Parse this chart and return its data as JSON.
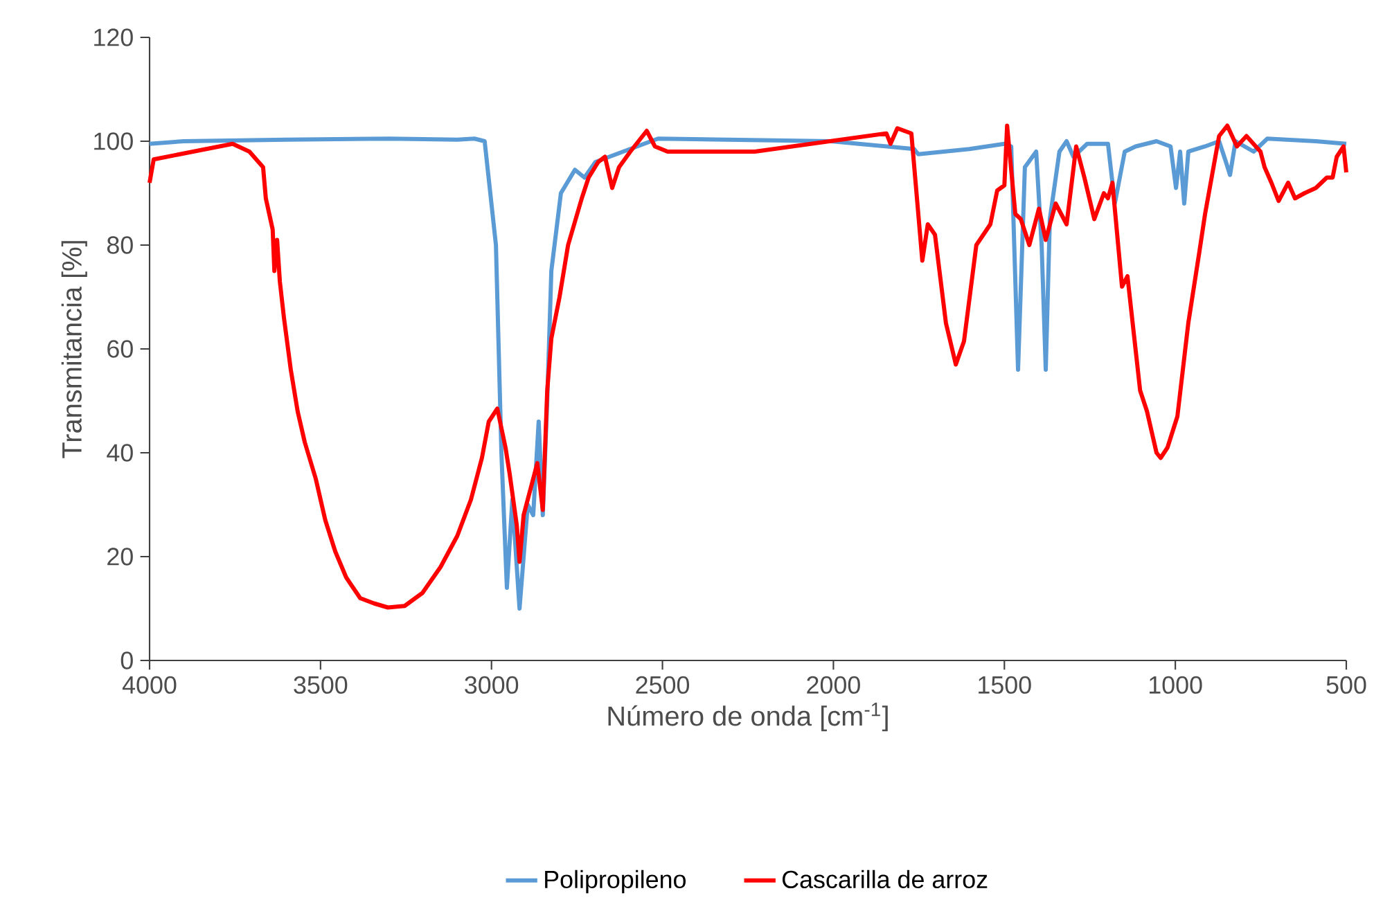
{
  "chart_data": {
    "type": "line",
    "xlabel": "Número de onda [cm$^{-1}$]",
    "ylabel": "Transmitancia [%]",
    "xlim": [
      4000,
      500
    ],
    "xticks": [
      4000,
      3500,
      3000,
      2500,
      2000,
      1500,
      1000,
      500
    ],
    "ylim": [
      0,
      120
    ],
    "yticks": [
      0,
      20,
      40,
      60,
      80,
      100,
      120
    ],
    "grid": false,
    "legend": "bottom",
    "marker": "none",
    "line_style": "solid",
    "series": [
      {
        "name": "Polipropileno",
        "color": "#5b9bd5",
        "x": [
          4000,
          3900,
          3600,
          3300,
          3100,
          3050,
          3020,
          2987,
          2971,
          2955,
          2939,
          2918,
          2894,
          2878,
          2862,
          2850,
          2837,
          2825,
          2797,
          2756,
          2728,
          2696,
          2615,
          2513,
          2007,
          1926,
          1764,
          1752,
          1602,
          1500,
          1480,
          1460,
          1440,
          1407,
          1391,
          1379,
          1367,
          1339,
          1318,
          1298,
          1258,
          1197,
          1177,
          1148,
          1116,
          1055,
          1014,
          998,
          986,
          974,
          962,
          913,
          872,
          852,
          840,
          824,
          771,
          731,
          589,
          500
        ],
        "values": [
          99.5,
          100,
          100.3,
          100.5,
          100.3,
          100.5,
          100,
          80,
          40,
          14,
          31,
          10,
          30,
          28,
          46,
          28,
          50,
          75,
          90,
          94.5,
          93,
          96,
          98,
          100.5,
          100,
          99.5,
          98.5,
          97.5,
          98.5,
          99.5,
          99,
          56,
          95,
          98,
          80,
          56,
          85,
          98,
          100,
          97,
          99.5,
          99.5,
          88,
          98,
          99,
          100,
          99,
          91,
          98,
          88,
          98,
          99,
          100,
          96,
          93.5,
          100,
          98,
          100.5,
          100,
          99.5
        ]
      },
      {
        "name": "Cascarilla de arroz",
        "color": "#ff0000",
        "x": [
          4000,
          3988,
          3757,
          3708,
          3668,
          3660,
          3640,
          3635,
          3627,
          3619,
          3607,
          3587,
          3567,
          3546,
          3514,
          3486,
          3457,
          3425,
          3384,
          3344,
          3303,
          3254,
          3202,
          3149,
          3100,
          3060,
          3028,
          3008,
          2983,
          2959,
          2947,
          2926,
          2918,
          2906,
          2886,
          2866,
          2850,
          2837,
          2825,
          2801,
          2776,
          2736,
          2716,
          2688,
          2668,
          2647,
          2627,
          2594,
          2546,
          2522,
          2485,
          2230,
          1845,
          1833,
          1813,
          1772,
          1740,
          1724,
          1703,
          1671,
          1642,
          1618,
          1582,
          1541,
          1521,
          1500,
          1492,
          1468,
          1452,
          1427,
          1399,
          1379,
          1350,
          1318,
          1290,
          1266,
          1237,
          1209,
          1197,
          1184,
          1156,
          1140,
          1103,
          1083,
          1055,
          1043,
          1023,
          994,
          962,
          929,
          913,
          872,
          848,
          820,
          792,
          751,
          739,
          719,
          698,
          670,
          650,
          622,
          589,
          557,
          540,
          528,
          508,
          500
        ],
        "values": [
          92,
          96.5,
          99.5,
          98,
          95,
          89,
          83,
          75,
          81,
          73,
          66,
          56,
          48,
          42,
          35,
          27,
          21,
          16,
          12,
          11,
          10.2,
          10.5,
          13,
          18,
          24,
          31,
          39,
          46,
          48.5,
          41,
          36,
          26,
          19,
          28,
          33,
          38,
          29,
          52,
          62,
          70,
          80,
          89,
          93,
          96,
          97,
          91,
          95,
          98,
          102,
          99,
          98,
          98,
          101.5,
          99.5,
          102.5,
          101.5,
          77,
          84,
          82,
          65,
          57,
          61.5,
          80,
          84,
          90.5,
          91.5,
          103,
          86,
          85,
          80,
          87,
          81,
          88,
          84,
          99,
          93,
          85,
          90,
          89,
          92,
          72,
          74,
          52,
          48,
          40,
          39,
          41,
          47,
          65,
          79,
          86,
          101,
          103,
          99,
          101,
          98,
          95,
          92,
          88.5,
          92,
          89,
          90,
          91,
          93,
          93,
          97,
          99,
          94
        ]
      }
    ]
  }
}
